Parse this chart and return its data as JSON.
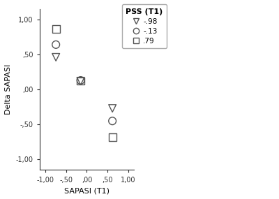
{
  "title": "",
  "xlabel": "SAPASI (T1)",
  "ylabel": "Delta SAPASI",
  "xlim": [
    -1.15,
    1.15
  ],
  "ylim": [
    -1.15,
    1.15
  ],
  "xticks": [
    -1.0,
    -0.5,
    0.0,
    0.5,
    1.0
  ],
  "yticks": [
    -1.0,
    -0.5,
    0.0,
    0.5,
    1.0
  ],
  "xtick_labels": [
    "-1,00",
    "-,50",
    ",00",
    ",50",
    "1,00"
  ],
  "ytick_labels": [
    "-1,00",
    "-,50",
    ",00",
    ",50",
    "1,00"
  ],
  "series": [
    {
      "label": "-.98",
      "marker": "v",
      "x": [
        -0.75,
        -0.15,
        0.62
      ],
      "y": [
        0.46,
        0.12,
        -0.27
      ],
      "size": 60
    },
    {
      "label": "-.13",
      "marker": "o",
      "x": [
        -0.75,
        -0.15,
        0.62
      ],
      "y": [
        0.64,
        0.13,
        -0.45
      ],
      "size": 60
    },
    {
      "label": ".79",
      "marker": "s",
      "x": [
        -0.75,
        -0.15,
        0.62
      ],
      "y": [
        0.86,
        0.12,
        -0.68
      ],
      "size": 60
    }
  ],
  "legend_title": "PSS (T1)",
  "background_color": "#ffffff",
  "marker_color": "#555555",
  "fontsize": 8,
  "tick_fontsize": 7,
  "legend_fontsize": 7.5
}
